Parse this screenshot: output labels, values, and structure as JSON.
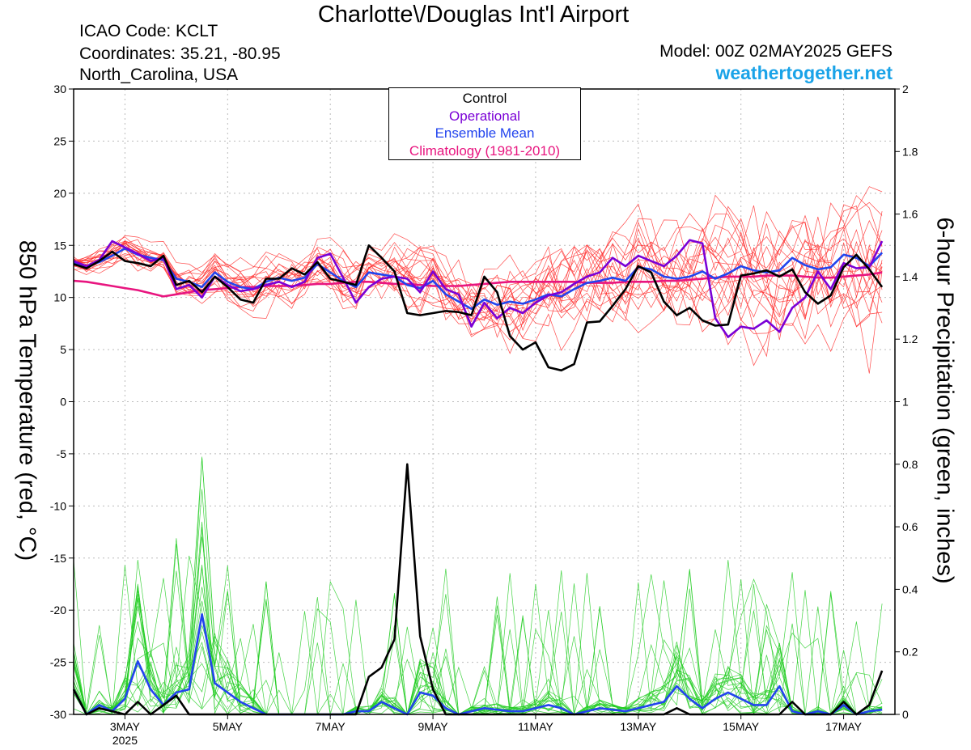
{
  "header": {
    "title": "Charlotte\\/Douglas Int'l Airport",
    "icao": "ICAO Code: KCLT",
    "coordinates": "Coordinates: 35.21, -80.95",
    "region": "North_Carolina, USA",
    "model": "Model: 00Z 02MAY2025 GEFS",
    "site": "weathertogether.net"
  },
  "colors": {
    "control": "#000000",
    "operational": "#7a00d6",
    "ensemble_mean": "#2244ee",
    "climatology": "#e8157f",
    "members_temp": "#ff2a2a",
    "members_precip": "#22cc22",
    "site": "#1aa3e8"
  },
  "chart_data": {
    "type": "line",
    "xlabel": "",
    "ylabel": "850 hPa Temperature (red, °C)",
    "y2label": "6-hour Precipitation (green, inches)",
    "x_unit": "days from 00Z 02MAY2025, 6-hourly steps",
    "x_ticks": [
      {
        "day": 1,
        "label": "3MAY",
        "sub": "2025"
      },
      {
        "day": 3,
        "label": "5MAY"
      },
      {
        "day": 5,
        "label": "7MAY"
      },
      {
        "day": 7,
        "label": "9MAY"
      },
      {
        "day": 9,
        "label": "11MAY"
      },
      {
        "day": 11,
        "label": "13MAY"
      },
      {
        "day": 13,
        "label": "15MAY"
      },
      {
        "day": 15,
        "label": "17MAY"
      }
    ],
    "xlim": [
      0,
      16
    ],
    "ylim": [
      -30,
      30
    ],
    "y_ticks": [
      30,
      25,
      20,
      15,
      10,
      5,
      0,
      -5,
      -10,
      -15,
      -20,
      -25,
      -30
    ],
    "y2lim": [
      0,
      2
    ],
    "y2_ticks": [
      2,
      1.8,
      1.6,
      1.4,
      1.2,
      1,
      0.8,
      0.6,
      0.4,
      0.2,
      0
    ],
    "legend": [
      "Control",
      "Operational",
      "Ensemble Mean",
      "Climatology (1981-2010)"
    ],
    "legend_position": "top-center",
    "series": [
      {
        "name": "Control",
        "axis": "left",
        "values": [
          13.2,
          12.8,
          13.5,
          14.4,
          13.5,
          13.3,
          13.0,
          14.0,
          11.2,
          11.6,
          10.5,
          12.0,
          11.0,
          9.8,
          9.5,
          11.8,
          11.8,
          12.8,
          12.2,
          13.4,
          11.8,
          11.5,
          11.2,
          15.0,
          13.8,
          12.5,
          8.5,
          8.3,
          8.5,
          8.7,
          8.6,
          8.3,
          12.0,
          10.5,
          6.3,
          5.0,
          5.7,
          3.3,
          3.0,
          3.6,
          7.6,
          7.7,
          9.2,
          10.8,
          13.0,
          12.4,
          9.6,
          8.3,
          9.0,
          7.8,
          7.3,
          7.4,
          12.1,
          12.3,
          12.6,
          12.0,
          12.7,
          10.5,
          9.4,
          10.2,
          12.9,
          14.1,
          12.7,
          11.0
        ]
      },
      {
        "name": "Operational",
        "axis": "left",
        "values": [
          13.5,
          13.0,
          13.6,
          15.4,
          14.8,
          14.2,
          13.5,
          13.8,
          10.8,
          11.2,
          10.0,
          12.0,
          11.2,
          10.6,
          10.8,
          11.2,
          11.5,
          11.0,
          11.5,
          13.8,
          14.2,
          11.9,
          9.5,
          11.0,
          11.8,
          12.0,
          11.8,
          10.5,
          12.5,
          10.8,
          10.3,
          7.2,
          9.5,
          8.0,
          9.0,
          8.5,
          9.5,
          10.2,
          10.5,
          11.3,
          12.0,
          12.4,
          13.8,
          13.0,
          14.0,
          13.5,
          13.0,
          14.0,
          15.5,
          15.2,
          8.0,
          6.2,
          7.2,
          7.0,
          7.8,
          6.7,
          9.0,
          10.0,
          12.5,
          10.8,
          13.3,
          12.8,
          12.9,
          15.4
        ]
      },
      {
        "name": "Ensemble Mean",
        "axis": "left",
        "values": [
          13.3,
          13.0,
          13.4,
          14.0,
          14.7,
          14.1,
          13.8,
          13.6,
          11.8,
          11.5,
          11.0,
          12.4,
          11.5,
          11.0,
          10.8,
          11.5,
          11.9,
          11.6,
          11.9,
          13.2,
          12.4,
          11.6,
          11.0,
          12.4,
          12.2,
          12.0,
          11.2,
          10.9,
          11.6,
          10.3,
          9.6,
          8.9,
          9.8,
          9.3,
          9.6,
          9.4,
          9.8,
          10.3,
          10.1,
          10.8,
          11.4,
          11.6,
          11.9,
          11.6,
          12.9,
          12.7,
          12.0,
          11.8,
          12.0,
          12.5,
          11.8,
          12.3,
          13.0,
          12.6,
          12.4,
          12.6,
          13.8,
          13.1,
          12.7,
          12.9,
          14.1,
          13.8,
          13.0,
          14.3
        ]
      },
      {
        "name": "Climatology (1981-2010)",
        "axis": "left",
        "values": [
          11.6,
          11.5,
          11.3,
          11.1,
          10.9,
          10.7,
          10.4,
          10.1,
          10.3,
          10.5,
          10.7,
          10.8,
          10.9,
          11.0,
          11.0,
          11.1,
          11.1,
          11.1,
          11.2,
          11.3,
          11.3,
          11.4,
          11.5,
          11.5,
          11.4,
          11.3,
          11.3,
          11.2,
          11.1,
          11.1,
          11.1,
          11.2,
          11.3,
          11.4,
          11.5,
          11.5,
          11.5,
          11.5,
          11.5,
          11.5,
          11.4,
          11.4,
          11.4,
          11.5,
          11.5,
          11.5,
          11.6,
          11.6,
          11.7,
          11.8,
          11.9,
          12.0,
          12.0,
          12.0,
          12.1,
          12.1,
          12.1,
          12.0,
          11.9,
          11.9,
          12.0,
          12.1,
          12.2,
          12.4
        ]
      },
      {
        "name": "Control precipitation",
        "axis": "right",
        "values": [
          0.08,
          0.0,
          0.02,
          0.01,
          0.0,
          0.04,
          0.0,
          0.03,
          0.06,
          0.0,
          0.0,
          0.0,
          0.0,
          0.0,
          0.0,
          0.0,
          0.0,
          0.0,
          0.0,
          0.0,
          0.0,
          0.0,
          0.0,
          0.12,
          0.15,
          0.24,
          0.8,
          0.25,
          0.08,
          0.0,
          0.0,
          0.0,
          0.0,
          0.0,
          0.0,
          0.0,
          0.0,
          0.0,
          0.0,
          0.0,
          0.0,
          0.0,
          0.0,
          0.0,
          0.0,
          0.0,
          0.0,
          0.02,
          0.0,
          0.0,
          0.0,
          0.0,
          0.0,
          0.0,
          0.0,
          0.0,
          0.04,
          0.0,
          0.0,
          0.0,
          0.04,
          0.0,
          0.03,
          0.14
        ]
      },
      {
        "name": "Ensemble mean precipitation",
        "axis": "right",
        "values": [
          0.08,
          0.0,
          0.03,
          0.01,
          0.05,
          0.17,
          0.08,
          0.03,
          0.07,
          0.08,
          0.32,
          0.1,
          0.07,
          0.04,
          0.02,
          0.0,
          0.0,
          0.0,
          0.0,
          0.0,
          0.0,
          0.0,
          0.01,
          0.01,
          0.04,
          0.02,
          0.0,
          0.07,
          0.06,
          0.02,
          0.0,
          0.01,
          0.02,
          0.015,
          0.01,
          0.01,
          0.02,
          0.03,
          0.02,
          0.0,
          0.01,
          0.02,
          0.015,
          0.01,
          0.02,
          0.03,
          0.04,
          0.09,
          0.05,
          0.02,
          0.05,
          0.07,
          0.05,
          0.03,
          0.03,
          0.09,
          0.01,
          0.0,
          0.01,
          0.0,
          0.03,
          0.0,
          0.01,
          0.015
        ]
      }
    ]
  }
}
